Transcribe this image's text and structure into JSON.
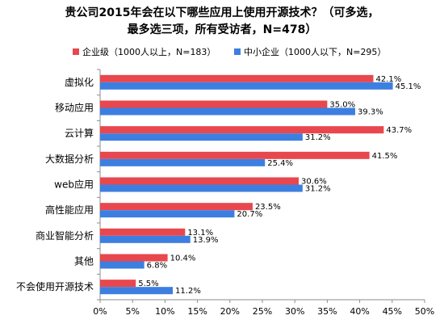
{
  "chart_data": {
    "type": "bar",
    "orientation": "horizontal",
    "title": [
      "贵公司2015年会在以下哪些应用上使用开源技术？（可多选，",
      "最多选三项，所有受访者，N=478）"
    ],
    "categories": [
      "虚拟化",
      "移动应用",
      "云计算",
      "大数据分析",
      "web应用",
      "高性能应用",
      "商业智能分析",
      "其他",
      "不会使用开源技术"
    ],
    "series": [
      {
        "name": "企业级（1000人以上，N=183）",
        "color": "#e8474e",
        "values": [
          42.1,
          35.0,
          43.7,
          41.5,
          30.6,
          23.5,
          13.1,
          10.4,
          5.5
        ]
      },
      {
        "name": "中小企业（1000人以下，N=295）",
        "color": "#3d7fe0",
        "values": [
          45.1,
          39.3,
          31.2,
          25.4,
          31.2,
          20.7,
          13.9,
          6.8,
          11.2
        ]
      }
    ],
    "xlim": [
      0,
      50
    ],
    "xticks": [
      0,
      5,
      10,
      15,
      20,
      25,
      30,
      35,
      40,
      45,
      50
    ],
    "value_suffix": "%",
    "legend_position": "top",
    "grid": false
  }
}
